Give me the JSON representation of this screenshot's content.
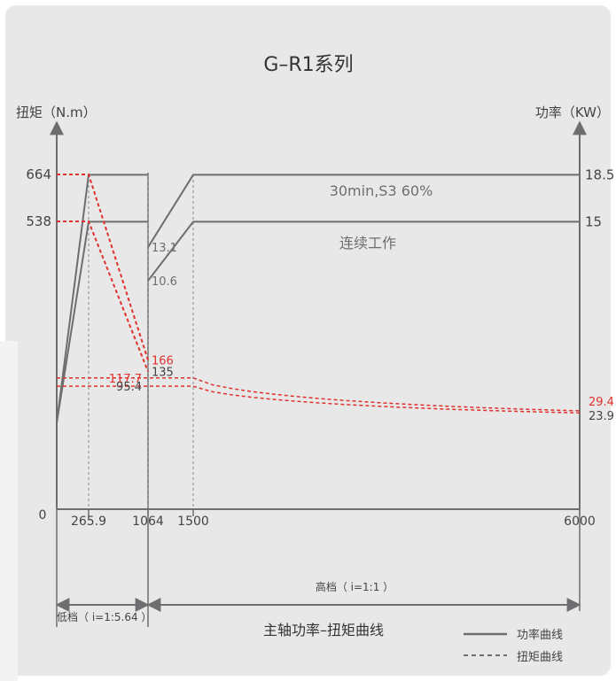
{
  "chart_data": {
    "type": "line",
    "title": "G–R1系列",
    "xlabel": "主轴功率–扭矩曲线",
    "ylabel_left": "扭矩（N.m）",
    "ylabel_right": "功率（KW）",
    "x_ticks": [
      "265.9",
      "1064",
      "1500",
      "6000"
    ],
    "x_zero": "0",
    "y_left_ticks": [
      "664",
      "538"
    ],
    "y_right_ticks": [
      "18.5",
      "15"
    ],
    "gear_low": "低档（ i=1:5.64 ）",
    "gear_high": "高档（ i=1:1 ）",
    "labels": {
      "s3": "30min,S3 60%",
      "cont": "连续工作"
    },
    "legend": {
      "power": "功率曲线",
      "torque": "扭矩曲线"
    },
    "colors": {
      "power": "#6d6e70",
      "torque": "#e0312d",
      "axis": "#6d6e70"
    },
    "power_series": [
      {
        "name": "S3",
        "points": [
          [
            0,
            0
          ],
          [
            265.9,
            18.5
          ],
          [
            1064,
            18.5
          ]
        ],
        "points_high": [
          [
            1064,
            13.1
          ],
          [
            1500,
            18.5
          ],
          [
            6000,
            18.5
          ]
        ]
      },
      {
        "name": "Continuous",
        "points": [
          [
            0,
            0
          ],
          [
            265.9,
            15
          ],
          [
            1064,
            15
          ]
        ],
        "points_high": [
          [
            1064,
            10.6
          ],
          [
            1500,
            15
          ],
          [
            6000,
            15
          ]
        ]
      }
    ],
    "torque_series": [
      {
        "name": "S3",
        "points": [
          [
            0,
            664
          ],
          [
            265.9,
            664
          ],
          [
            1064,
            166
          ]
        ],
        "points_high": [
          [
            0,
            117.7
          ],
          [
            1500,
            117.7
          ],
          [
            6000,
            29.4
          ]
        ]
      },
      {
        "name": "Continuous",
        "points": [
          [
            0,
            538
          ],
          [
            265.9,
            538
          ],
          [
            1064,
            135
          ]
        ],
        "points_high": [
          [
            0,
            95.4
          ],
          [
            1500,
            95.4
          ],
          [
            6000,
            23.9
          ]
        ]
      }
    ],
    "point_labels": [
      {
        "text": "13.1",
        "x": 1064,
        "y": 13.1,
        "axis": "power",
        "color": "gray"
      },
      {
        "text": "10.6",
        "x": 1064,
        "y": 10.6,
        "axis": "power",
        "color": "gray"
      },
      {
        "text": "166",
        "x": 1064,
        "y": 166,
        "axis": "torque",
        "color": "red"
      },
      {
        "text": "135",
        "x": 1064,
        "y": 135,
        "axis": "torque",
        "color": "dark"
      },
      {
        "text": "117.7",
        "x": 0,
        "y": 117.7,
        "axis": "torque",
        "color": "red"
      },
      {
        "text": "95.4",
        "x": 0,
        "y": 95.4,
        "axis": "torque",
        "color": "dark"
      },
      {
        "text": "29.4",
        "x": 6000,
        "y": 29.4,
        "axis": "torque",
        "color": "red"
      },
      {
        "text": "23.9",
        "x": 6000,
        "y": 23.9,
        "axis": "torque",
        "color": "dark"
      }
    ]
  }
}
